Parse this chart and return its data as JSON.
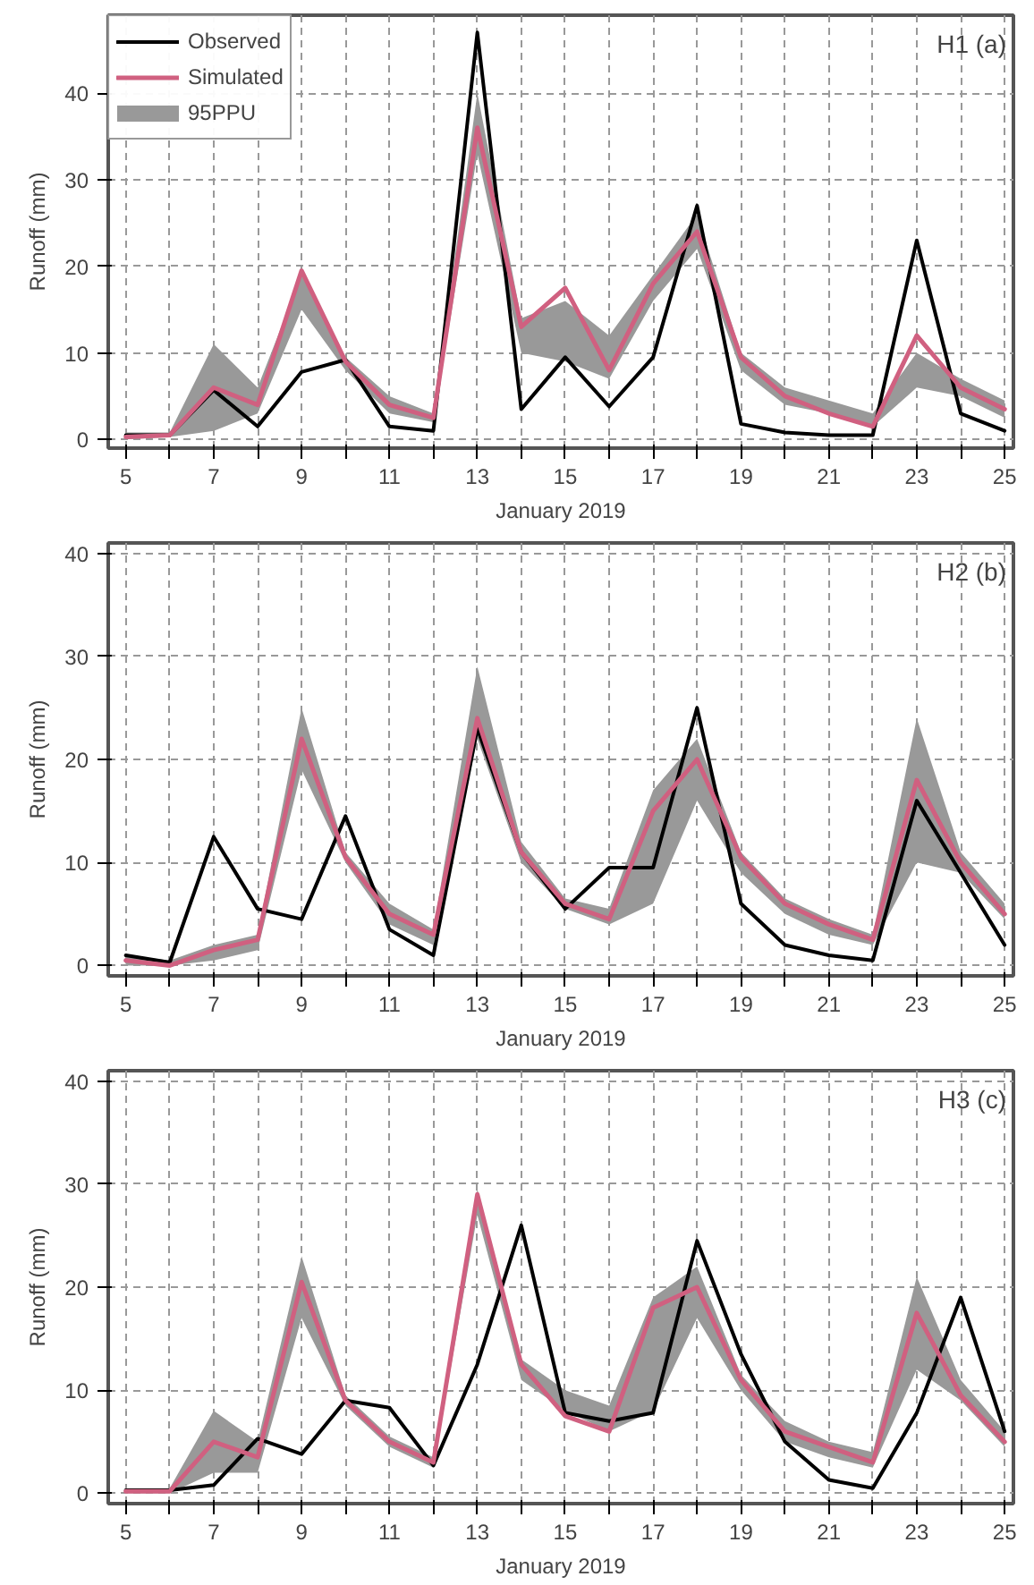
{
  "chart_data": [
    {
      "type": "line",
      "title": "H1 (a)",
      "xlabel": "January 2019",
      "ylabel": "Runoff (mm)",
      "annotations": [
        "95PPU"
      ],
      "x": [
        5,
        6,
        7,
        8,
        9,
        10,
        11,
        12,
        13,
        14,
        15,
        16,
        17,
        18,
        19,
        20,
        21,
        22,
        23,
        24,
        25
      ],
      "xlim": [
        4.6,
        25.2
      ],
      "ylim": [
        -1,
        49
      ],
      "xticks": [
        5,
        {
          "value": 6,
          "label": null
        },
        7,
        {
          "value": 8,
          "label": null
        },
        9,
        {
          "value": 10,
          "label": null
        },
        11,
        {
          "value": 12,
          "label": null
        },
        13,
        {
          "value": 14,
          "label": null
        },
        15,
        {
          "value": 16,
          "label": null
        },
        17,
        {
          "value": 18,
          "label": null
        },
        19,
        {
          "value": 20,
          "label": null
        },
        21,
        {
          "value": 22,
          "label": null
        },
        23,
        {
          "value": 24,
          "label": null
        },
        25
      ],
      "yticks": [
        0,
        10,
        20,
        30,
        40
      ],
      "grid": true,
      "legend": "top left",
      "line_style": "solid",
      "series": [
        {
          "name": "Observed",
          "color": "#000000",
          "values": [
            0.5,
            0.5,
            5.7,
            1.5,
            7.8,
            9.2,
            1.5,
            1,
            47,
            3.5,
            9.5,
            3.8,
            9.5,
            27,
            1.8,
            0.8,
            0.5,
            0.5,
            23,
            3,
            1
          ]
        },
        {
          "name": "Simulated",
          "color": "#d06080",
          "values": [
            0.3,
            0.5,
            6,
            4,
            19.5,
            9,
            4,
            2.5,
            36,
            13,
            17.5,
            8,
            18,
            24,
            9.5,
            5,
            3,
            1.5,
            12,
            6,
            3.5
          ],
          "lower": [
            0,
            0.3,
            1,
            3,
            15,
            8,
            3,
            2,
            33,
            10,
            9,
            7,
            16,
            22,
            8,
            4,
            3,
            1.5,
            6,
            5,
            2.5
          ],
          "upper": [
            0.8,
            0.8,
            11,
            6,
            19,
            9.5,
            5,
            3,
            40,
            14,
            16,
            12,
            19,
            26,
            10,
            6,
            4.5,
            3,
            10,
            7,
            4.5
          ]
        }
      ]
    },
    {
      "type": "line",
      "title": "H2 (b)",
      "xlabel": "January 2019",
      "ylabel": "Runoff (mm)",
      "x": [
        5,
        6,
        7,
        8,
        9,
        10,
        11,
        12,
        13,
        14,
        15,
        16,
        17,
        18,
        19,
        20,
        21,
        22,
        23,
        24,
        25
      ],
      "xlim": [
        4.6,
        25.2
      ],
      "ylim": [
        -1,
        41
      ],
      "xticks": [
        5,
        {
          "value": 6,
          "label": null
        },
        7,
        {
          "value": 8,
          "label": null
        },
        9,
        {
          "value": 10,
          "label": null
        },
        11,
        {
          "value": 12,
          "label": null
        },
        13,
        {
          "value": 14,
          "label": null
        },
        15,
        {
          "value": 16,
          "label": null
        },
        17,
        {
          "value": 18,
          "label": null
        },
        19,
        {
          "value": 20,
          "label": null
        },
        21,
        {
          "value": 22,
          "label": null
        },
        23,
        {
          "value": 24,
          "label": null
        },
        25
      ],
      "yticks": [
        0,
        10,
        20,
        30,
        40
      ],
      "grid": true,
      "line_style": "solid",
      "series": [
        {
          "color": "#000000",
          "values": [
            1,
            0.3,
            12.5,
            5.5,
            4.5,
            14.5,
            3.5,
            1,
            23,
            11,
            5.5,
            9.5,
            9.5,
            25,
            6,
            2,
            1,
            0.5,
            16,
            9,
            2
          ]
        },
        {
          "color": "#d06080",
          "values": [
            0.5,
            0,
            1.5,
            2.5,
            22,
            10.5,
            5,
            3,
            24,
            11,
            6,
            4.5,
            15,
            20,
            10.5,
            6,
            4,
            2.5,
            18,
            10,
            5
          ],
          "lower": [
            0,
            0,
            0.5,
            1.5,
            19,
            10,
            4,
            2,
            22,
            10,
            5.5,
            4,
            6,
            16,
            9,
            5,
            3,
            2,
            10,
            9,
            4.5
          ],
          "upper": [
            1,
            0.5,
            2,
            3,
            25,
            11,
            6,
            3.5,
            29,
            12,
            6.5,
            5.5,
            17,
            22,
            11,
            6.5,
            4.5,
            3,
            24,
            11,
            6
          ]
        }
      ]
    },
    {
      "type": "line",
      "title": "H3 (c)",
      "xlabel": "January 2019",
      "ylabel": "Runoff (mm)",
      "x": [
        5,
        6,
        7,
        8,
        9,
        10,
        11,
        12,
        13,
        14,
        15,
        16,
        17,
        18,
        19,
        20,
        21,
        22,
        23,
        24,
        25
      ],
      "xlim": [
        4.6,
        25.2
      ],
      "ylim": [
        -1,
        41
      ],
      "xticks": [
        5,
        {
          "value": 6,
          "label": null
        },
        7,
        {
          "value": 8,
          "label": null
        },
        9,
        {
          "value": 10,
          "label": null
        },
        11,
        {
          "value": 12,
          "label": null
        },
        13,
        {
          "value": 14,
          "label": null
        },
        15,
        {
          "value": 16,
          "label": null
        },
        17,
        {
          "value": 18,
          "label": null
        },
        19,
        {
          "value": 20,
          "label": null
        },
        21,
        {
          "value": 22,
          "label": null
        },
        23,
        {
          "value": 24,
          "label": null
        },
        25
      ],
      "yticks": [
        0,
        10,
        20,
        30,
        40
      ],
      "grid": true,
      "line_style": "solid",
      "series": [
        {
          "color": "#000000",
          "values": [
            0.3,
            0.3,
            0.8,
            5.3,
            3.8,
            9,
            8.3,
            2.7,
            12.5,
            26,
            7.8,
            7,
            7.8,
            24.5,
            13.5,
            5,
            1.3,
            0.5,
            7.8,
            19,
            6
          ]
        },
        {
          "color": "#d06080",
          "values": [
            0.2,
            0.2,
            5,
            3.5,
            20.5,
            9,
            5,
            3,
            29,
            12.5,
            7.5,
            6,
            18,
            20,
            11,
            6,
            4.5,
            3,
            17.5,
            9.5,
            5
          ],
          "lower": [
            0,
            0,
            2,
            2,
            17,
            8.5,
            4.5,
            2.5,
            27,
            11,
            8,
            6,
            8,
            17,
            10,
            5,
            3.5,
            2.5,
            12,
            9,
            4.5
          ],
          "upper": [
            0.5,
            0.5,
            8,
            5,
            23,
            9.5,
            5.5,
            3.5,
            29.5,
            13,
            10,
            8.5,
            19,
            22,
            11.5,
            7,
            5,
            4,
            21,
            11,
            6
          ]
        }
      ]
    }
  ]
}
